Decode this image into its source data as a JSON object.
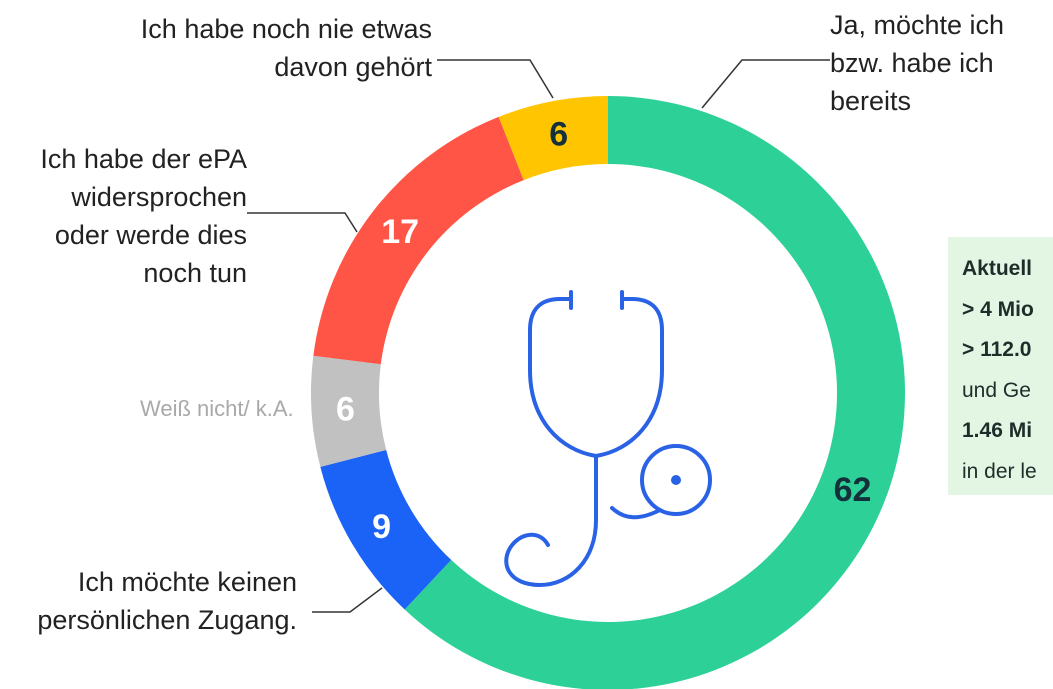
{
  "chart_data": {
    "type": "donut",
    "categories": [
      "Ja, möchte ich bzw. habe ich bereits",
      "Ich möchte keinen persönlichen Zugang.",
      "Weiß nicht/ k.A.",
      "Ich habe der ePA widersprochen oder werde dies noch tun",
      "Ich habe noch nie etwas davon gehört"
    ],
    "values": [
      62,
      9,
      6,
      17,
      6
    ],
    "colors": [
      "#2dd197",
      "#1b62f6",
      "#c1c1c1",
      "#ff5546",
      "#ffc500"
    ],
    "info_box": [
      {
        "text": "Aktuell",
        "bold": true
      },
      {
        "text": "> 4 Mio",
        "bold": true
      },
      {
        "text": "> 112.0",
        "bold": true
      },
      {
        "text": "und Ge",
        "bold": false
      },
      {
        "text": "1.46 Mi",
        "bold": true
      },
      {
        "text": "in der le",
        "bold": false
      }
    ]
  }
}
